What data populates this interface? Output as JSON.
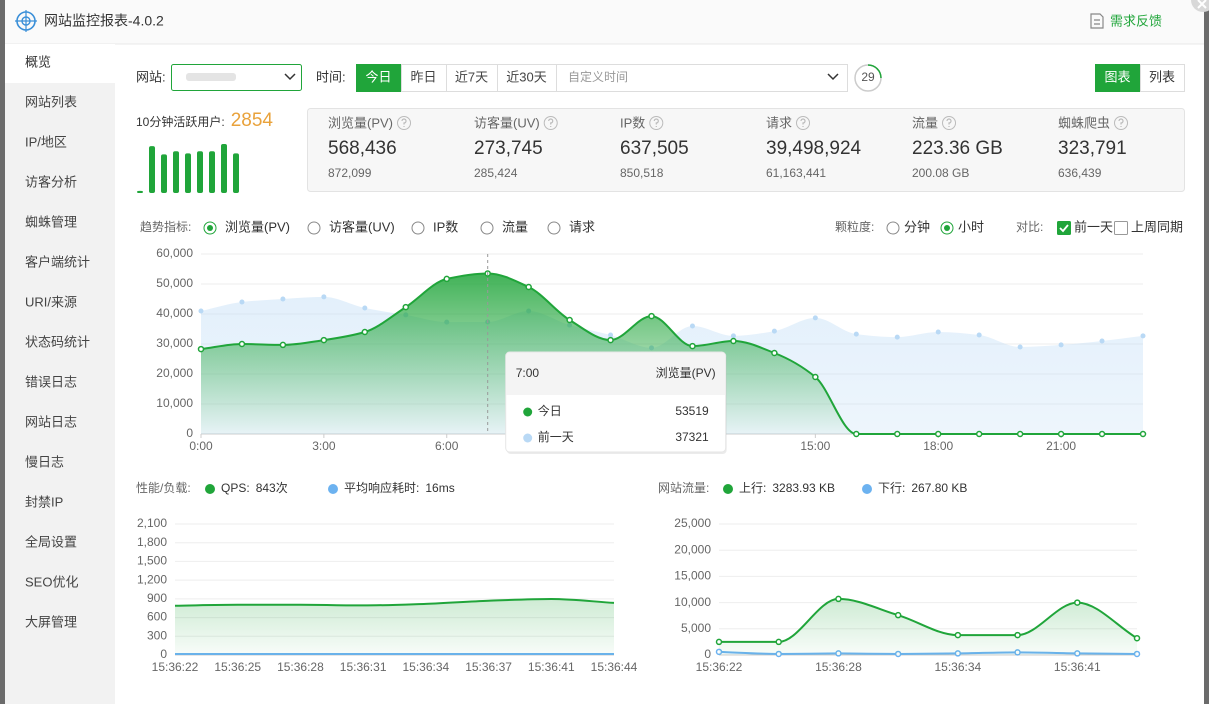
{
  "header": {
    "title": "网站监控报表-4.0.2",
    "feedback": "需求反馈"
  },
  "sidebar": {
    "items": [
      "概览",
      "网站列表",
      "IP/地区",
      "访客分析",
      "蜘蛛管理",
      "客户端统计",
      "URI/来源",
      "状态码统计",
      "错误日志",
      "网站日志",
      "慢日志",
      "封禁IP",
      "全局设置",
      "SEO优化",
      "大屏管理"
    ],
    "active": 0
  },
  "filters": {
    "site_label": "网站:",
    "time_label": "时间:",
    "ranges": [
      "今日",
      "昨日",
      "近7天",
      "近30天"
    ],
    "active_range": 0,
    "custom_time": "自定义时间",
    "refresh": "29",
    "views": [
      "图表",
      "列表"
    ],
    "active_view": 0
  },
  "active_users": {
    "label": "10分钟活跃用户:",
    "value": 2854,
    "bars": [
      2,
      45,
      37,
      40,
      38,
      40,
      40,
      47,
      38
    ],
    "color": "#20a53a"
  },
  "summary": [
    {
      "name": "浏览量(PV)",
      "value": "568,436",
      "previous": "872,099"
    },
    {
      "name": "访客量(UV)",
      "value": "273,745",
      "previous": "285,424"
    },
    {
      "name": "IP数",
      "value": "637,505",
      "previous": "850,518"
    },
    {
      "name": "请求",
      "value": "39,498,924",
      "previous": "61,163,441"
    },
    {
      "name": "流量",
      "value": "223.36 GB",
      "previous": "200.08 GB"
    },
    {
      "name": "蜘蛛爬虫",
      "value": "323,791",
      "previous": "636,439"
    }
  ],
  "trend_controls": {
    "metric_label": "趋势指标:",
    "metrics": [
      "浏览量(PV)",
      "访客量(UV)",
      "IP数",
      "流量",
      "请求"
    ],
    "active_metric": 0,
    "granularity_label": "颗粒度:",
    "granularities": [
      "分钟",
      "小时"
    ],
    "active_granularity": 1,
    "compare_label": "对比:",
    "compares": [
      "前一天",
      "上周同期"
    ],
    "compare_checked": [
      true,
      false
    ]
  },
  "chart_data": [
    {
      "type": "area",
      "markers": true,
      "x": [
        0,
        1,
        2,
        3,
        4,
        5,
        6,
        7,
        8,
        9,
        10,
        11,
        12,
        13,
        14,
        15,
        16,
        17,
        18,
        19,
        20,
        21,
        22,
        23
      ],
      "xlim": [
        0,
        23
      ],
      "xticks": [
        {
          "value": 0,
          "label": "0:00"
        },
        {
          "value": 3,
          "label": "3:00"
        },
        {
          "value": 6,
          "label": "6:00"
        },
        {
          "value": 9,
          "label": "9:00"
        },
        {
          "value": 12,
          "label": "12:00"
        },
        {
          "value": 15,
          "label": "15:00"
        },
        {
          "value": 18,
          "label": "18:00"
        },
        {
          "value": 21,
          "label": "21:00"
        }
      ],
      "ylim": [
        0,
        60000
      ],
      "yticks": [
        0,
        {
          "value": 10000,
          "label": "10,000"
        },
        {
          "value": 20000,
          "label": "20,000"
        },
        {
          "value": 30000,
          "label": "30,000"
        },
        {
          "value": 40000,
          "label": "40,000"
        },
        {
          "value": 50000,
          "label": "50,000"
        },
        {
          "value": 60000,
          "label": "60,000"
        }
      ],
      "grid": true,
      "series": [
        {
          "name": "今日",
          "color": "#20a53a",
          "values": [
            28300,
            30000,
            29700,
            31300,
            34000,
            42300,
            51700,
            53519,
            49000,
            38000,
            31300,
            39300,
            29300,
            31000,
            27000,
            19000,
            0,
            0,
            0,
            0,
            0,
            0,
            0,
            0
          ]
        },
        {
          "name": "前一天",
          "color": "#b9d9f5",
          "values": [
            41000,
            44000,
            45000,
            45700,
            42000,
            39700,
            37300,
            37321,
            41000,
            36300,
            33000,
            28700,
            36000,
            32700,
            34300,
            38700,
            33300,
            32300,
            34000,
            33000,
            29000,
            29700,
            31000,
            32700
          ]
        }
      ],
      "tooltip": {
        "x": {
          "value": 7,
          "label": "7:00"
        },
        "title": "浏览量(PV)"
      }
    },
    {
      "type": "area",
      "markers": false,
      "title": "性能/负载:",
      "categories": [
        "15:36:22",
        "15:36:25",
        "15:36:28",
        "15:36:31",
        "15:36:34",
        "15:36:37",
        "15:36:41",
        "15:36:44"
      ],
      "ylim": [
        0,
        2100
      ],
      "yticks": [
        0,
        300,
        600,
        900,
        {
          "value": 1200,
          "label": "1,200"
        },
        {
          "value": 1500,
          "label": "1,500"
        },
        {
          "value": 1800,
          "label": "1,800"
        },
        {
          "value": 2100,
          "label": "2,100"
        }
      ],
      "grid": true,
      "series": [
        {
          "name": "QPS:",
          "legend_value": "843次",
          "color": "#20a53a",
          "values": [
            790,
            805,
            805,
            795,
            820,
            870,
            898,
            835
          ]
        },
        {
          "name": "平均响应耗时:",
          "legend_value": "16ms",
          "color": "#6cb2f0",
          "values": [
            16,
            16,
            16,
            16,
            16,
            16,
            16,
            16
          ]
        }
      ]
    },
    {
      "type": "area",
      "markers": true,
      "title": "网站流量:",
      "categories": [
        "15:36:22",
        null,
        "15:36:28",
        null,
        "15:36:34",
        null,
        "15:36:41",
        null
      ],
      "ylim": [
        0,
        25000
      ],
      "yticks": [
        0,
        {
          "value": 5000,
          "label": "5,000"
        },
        {
          "value": 10000,
          "label": "10,000"
        },
        {
          "value": 15000,
          "label": "15,000"
        },
        {
          "value": 20000,
          "label": "20,000"
        },
        {
          "value": 25000,
          "label": "25,000"
        }
      ],
      "grid": true,
      "series": [
        {
          "name": "上行:",
          "legend_value": "3283.93 KB",
          "color": "#20a53a",
          "values": [
            2500,
            2500,
            10700,
            7600,
            3800,
            3800,
            10000,
            3200
          ]
        },
        {
          "name": "下行:",
          "legend_value": "267.80 KB",
          "color": "#6cb2f0",
          "values": [
            600,
            200,
            300,
            200,
            300,
            500,
            300,
            200
          ]
        }
      ]
    }
  ]
}
